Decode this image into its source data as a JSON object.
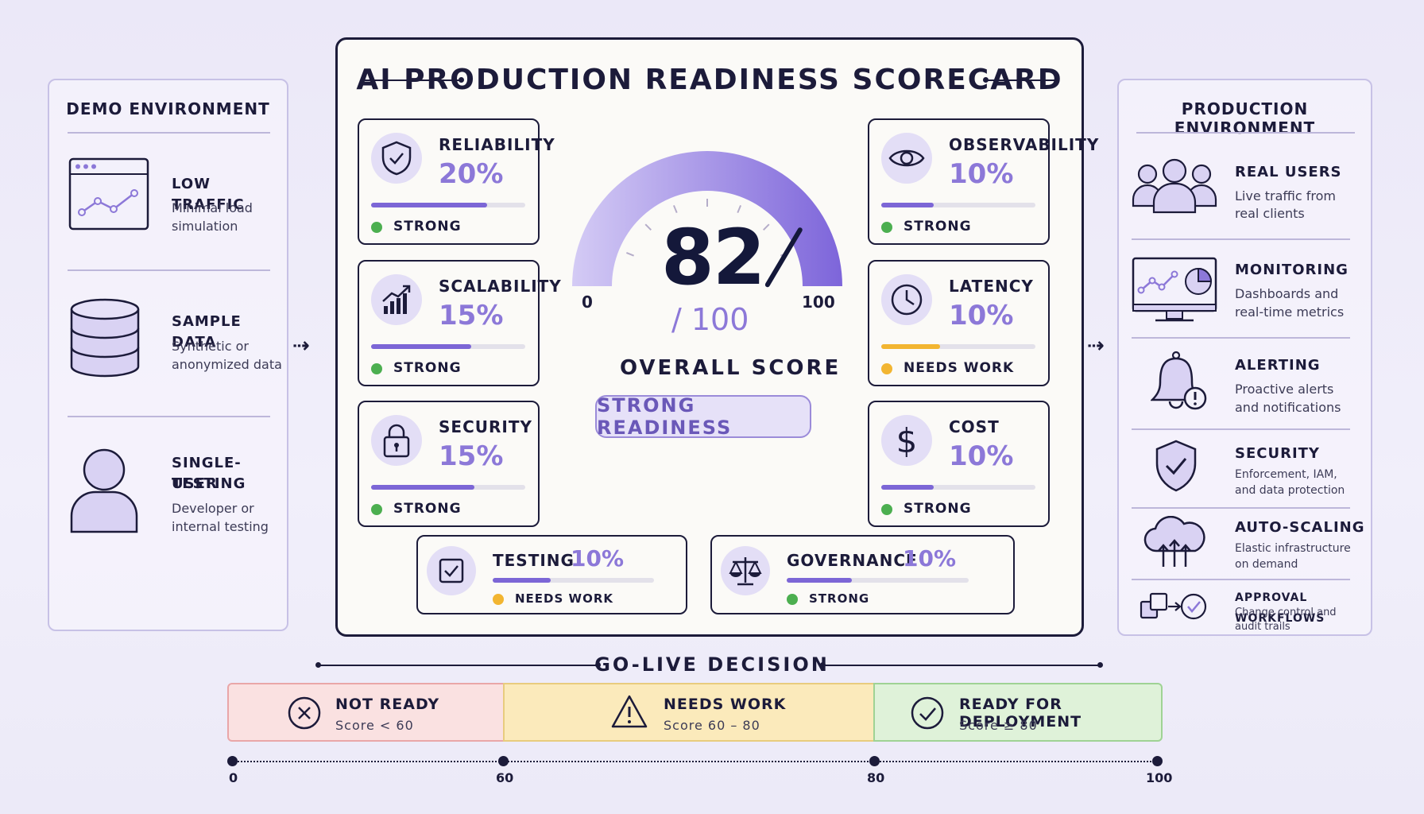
{
  "demo": {
    "title": "DEMO ENVIRONMENT",
    "items": [
      {
        "title": "LOW TRAFFIC",
        "desc1": "Minimal load",
        "desc2": "simulation",
        "icon": "browser-chart-icon"
      },
      {
        "title": "SAMPLE DATA",
        "desc1": "Synthetic or",
        "desc2": "anonymized data",
        "icon": "database-icon"
      },
      {
        "title1": "SINGLE-USER",
        "title2": "TESTING",
        "desc1": "Developer or",
        "desc2": "internal testing",
        "icon": "user-icon"
      }
    ]
  },
  "scorecard": {
    "title": "AI PRODUCTION READINESS SCORECARD",
    "score": "82",
    "score_max": "/ 100",
    "gauge_min": "0",
    "gauge_max": "100",
    "gauge_value": 82,
    "overall_label": "OVERALL SCORE",
    "readiness_label": "STRONG READINESS",
    "metrics": [
      {
        "name": "RELIABILITY",
        "pct": "20%",
        "status": "STRONG",
        "fill": 0.75,
        "color": "#7c66d6",
        "status_color": "#4caf50",
        "icon": "shield-check-icon"
      },
      {
        "name": "SCALABILITY",
        "pct": "15%",
        "status": "STRONG",
        "fill": 0.65,
        "color": "#7c66d6",
        "status_color": "#4caf50",
        "icon": "growth-chart-icon"
      },
      {
        "name": "SECURITY",
        "pct": "15%",
        "status": "STRONG",
        "fill": 0.67,
        "color": "#7c66d6",
        "status_color": "#4caf50",
        "icon": "lock-icon"
      },
      {
        "name": "OBSERVABILITY",
        "pct": "10%",
        "status": "STRONG",
        "fill": 0.34,
        "color": "#7c66d6",
        "status_color": "#4caf50",
        "icon": "eye-icon"
      },
      {
        "name": "LATENCY",
        "pct": "10%",
        "status": "NEEDS WORK",
        "fill": 0.38,
        "color": "#f2b531",
        "status_color": "#f2b531",
        "icon": "clock-icon"
      },
      {
        "name": "COST",
        "pct": "10%",
        "status": "STRONG",
        "fill": 0.34,
        "color": "#7c66d6",
        "status_color": "#4caf50",
        "icon": "dollar-icon"
      },
      {
        "name": "TESTING",
        "pct": "10%",
        "status": "NEEDS WORK",
        "fill": 0.36,
        "color": "#7c66d6",
        "status_color": "#f2b531",
        "icon": "checkbox-icon"
      },
      {
        "name": "GOVERNANCE",
        "pct": "10%",
        "status": "STRONG",
        "fill": 0.36,
        "color": "#7c66d6",
        "status_color": "#4caf50",
        "icon": "scales-icon"
      }
    ]
  },
  "production": {
    "title": "PRODUCTION ENVIRONMENT",
    "items": [
      {
        "title": "REAL USERS",
        "desc1": "Live traffic from",
        "desc2": "real clients",
        "icon": "users-icon"
      },
      {
        "title": "MONITORING",
        "desc1": "Dashboards and",
        "desc2": "real-time metrics",
        "icon": "monitor-icon"
      },
      {
        "title": "ALERTING",
        "desc1": "Proactive alerts",
        "desc2": "and notifications",
        "icon": "bell-alert-icon"
      },
      {
        "title": "SECURITY",
        "desc1": "Enforcement, IAM,",
        "desc2": "and data protection",
        "icon": "shield-check-icon"
      },
      {
        "title": "AUTO-SCALING",
        "desc1": "Elastic infrastructure",
        "desc2": "on demand",
        "icon": "cloud-scale-icon"
      },
      {
        "title": "APPROVAL WORKFLOWS",
        "desc1": "Change control and",
        "desc2": "audit trails",
        "icon": "workflow-check-icon"
      }
    ]
  },
  "decision": {
    "title": "GO-LIVE DECISION",
    "bands": [
      {
        "title": "NOT READY",
        "sub": "Score < 60",
        "bg": "#fae1e1",
        "border": "#e9a6a8",
        "icon": "x-circle-icon"
      },
      {
        "title": "NEEDS WORK",
        "sub": "Score 60 – 80",
        "bg": "#fbeabb",
        "border": "#e8cc7e",
        "icon": "warning-icon"
      },
      {
        "title": "READY FOR DEPLOYMENT",
        "sub": "Score ≥ 80",
        "bg": "#dff2d9",
        "border": "#9fd394",
        "icon": "check-circle-icon"
      }
    ],
    "scale": [
      "0",
      "60",
      "80",
      "100"
    ]
  }
}
